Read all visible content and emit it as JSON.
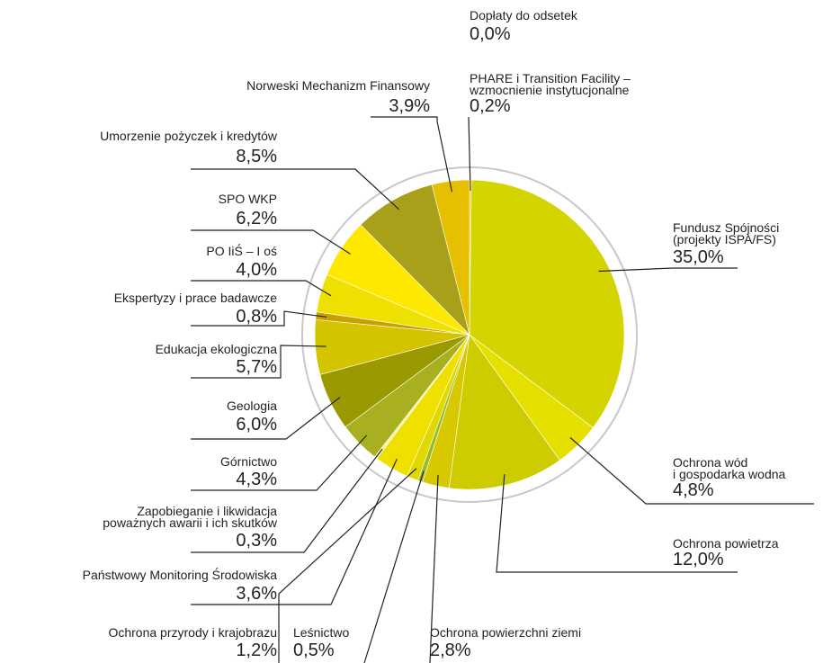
{
  "chart_data": {
    "type": "pie",
    "categories": [
      "Dopłaty do odsetek",
      [
        "PHARE i Transition Facility –",
        "wzmocnienie instytucjonalne"
      ],
      [
        "Fundusz Spójności",
        "(projekty ISPA/FS)"
      ],
      [
        "Ochrona wód",
        "i gospodarka wodna"
      ],
      "Ochrona powietrza",
      "Ochrona powierzchni ziemi",
      "Leśnictwo",
      "Ochrona przyrody i krajobrazu",
      "Państwowy Monitoring Środowiska",
      [
        "Zapobieganie i likwidacja",
        "poważnych awarii i ich skutków"
      ],
      "Górnictwo",
      "Geologia",
      "Edukacja ekologiczna",
      "Ekspertyzy i prace badawcze",
      "PO IiŚ – I oś",
      "SPO WKP",
      "Umorzenie pożyczek i kredytów",
      "Norweski Mechanizm Finansowy"
    ],
    "values": [
      0.0,
      0.2,
      35.0,
      4.8,
      12.0,
      2.8,
      0.5,
      1.2,
      3.6,
      0.3,
      4.3,
      6.0,
      5.7,
      0.8,
      4.0,
      6.2,
      8.5,
      3.9
    ],
    "value_labels": [
      "0,0%",
      "0,2%",
      "35,0%",
      "4,8%",
      "12,0%",
      "2,8%",
      "0,5%",
      "1,2%",
      "3,6%",
      "0,3%",
      "4,3%",
      "6,0%",
      "5,7%",
      "0,8%",
      "4,0%",
      "6,2%",
      "8,5%",
      "3,9%"
    ],
    "colors": [
      "#e8c800",
      "#e8c800",
      "#d4d400",
      "#e6e000",
      "#cccc00",
      "#d8c800",
      "#99bb22",
      "#e0d800",
      "#f0e000",
      "#f5f0a0",
      "#a8b020",
      "#9a9a00",
      "#d4c400",
      "#c8a000",
      "#eee000",
      "#ffe800",
      "#a8a018",
      "#e6c000"
    ]
  }
}
